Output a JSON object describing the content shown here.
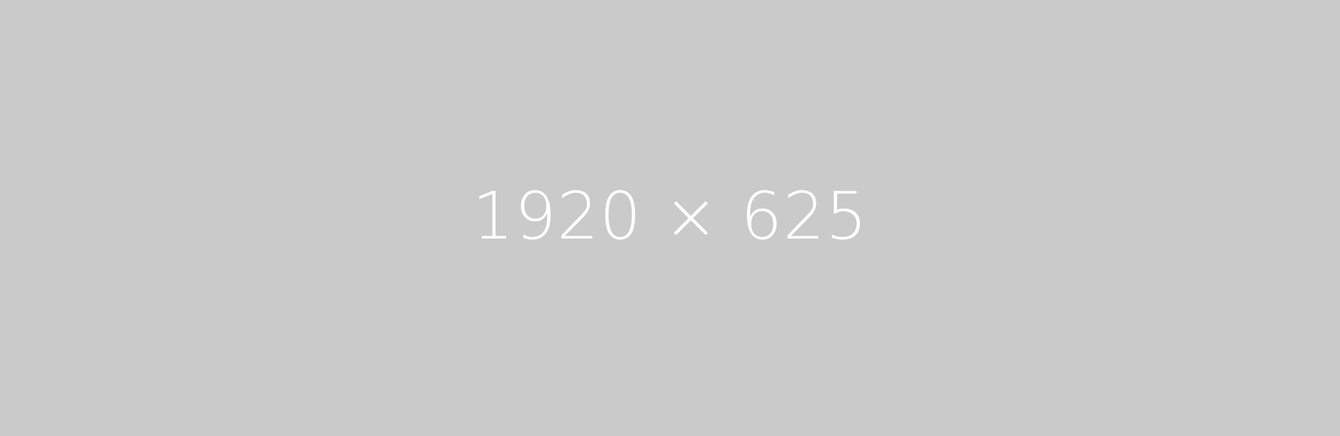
{
  "placeholder": {
    "label": "1920 × 625",
    "background_color": "#cacaca",
    "text_color": "#ffffff"
  }
}
